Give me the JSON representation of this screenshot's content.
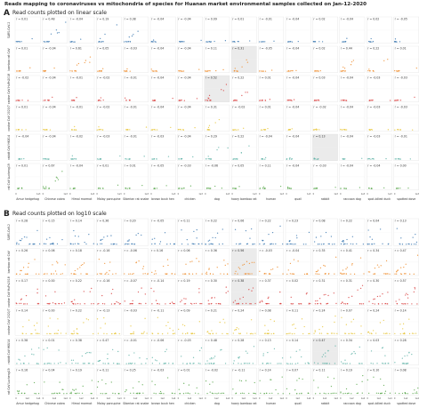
{
  "figure": {
    "title": "Reads mapping to coronaviruses vs mitochondria of species for Huanan market environmental samples collected on Jan-12-2020",
    "colors": {
      "SARS-CoV-2": "#3b78b0",
      "bamboo rat CoV": "#ef8c2b",
      "canine CoV HuPn2018": "#d9413f",
      "canine CoV 2020/7": "#e8c53a",
      "rabbit CoV HKU14": "#5fb3a7",
      "rat CoV Lucheng19": "#5aa84d"
    }
  },
  "chart_data": [
    {
      "type": "scatter",
      "letter": "A",
      "title": "Read counts plotted on linear scale",
      "rows": [
        "SARS-CoV-2",
        "bamboo rat CoV",
        "canine CoV HuPn2018",
        "canine CoV 2020/7",
        "rabbit CoV HKU14",
        "rat CoV Lucheng19"
      ],
      "columns": [
        "Amur hedgehog",
        "Chinese cobra",
        "Himal marmot",
        "Malay porcupine",
        "Siberian rat snake",
        "brown bush hen",
        "chicken",
        "dog",
        "hoary bamboo rat",
        "human",
        "quail",
        "rabbit",
        "raccoon dog",
        "spot-billed duck",
        "spotted dove"
      ],
      "xticks": [
        "0",
        "1e3"
      ],
      "r": [
        [
          "0.01",
          "0.48",
          "-0.04",
          "0.19",
          "0.38",
          "-0.04",
          "-0.04",
          "0.09",
          "0.01",
          "-0.01",
          "-0.04",
          "0.02",
          "-0.04",
          "0.02",
          "-0.05"
        ],
        [
          "0.01",
          "-0.04",
          "0.61",
          "0.05",
          "-0.03",
          "-0.04",
          "-0.04",
          "0.11",
          "0.31",
          "-0.05",
          "-0.04",
          "0.02",
          "0.44",
          "0.22",
          "0.01"
        ],
        [
          "-0.02",
          "-0.04",
          "-0.01",
          "-0.02",
          "-0.01",
          "-0.04",
          "-0.04",
          "0.52",
          "0.22",
          "0.01",
          "-0.04",
          "0.03",
          "-0.04",
          "-0.03",
          "-0.03"
        ],
        [
          "0.01",
          "-0.04",
          "-0.01",
          "-0.02",
          "-0.01",
          "-0.04",
          "-0.04",
          "0.31",
          "-0.02",
          "0.01",
          "-0.04",
          "-0.02",
          "-0.04",
          "-0.03",
          "-0.03"
        ],
        [
          "-0.04",
          "-0.04",
          "-0.02",
          "-0.03",
          "-0.01",
          "-0.03",
          "-0.04",
          "0.29",
          "0.22",
          "-0.04",
          "-0.04",
          "0.13",
          "-0.04",
          "-0.03",
          "-0.01"
        ],
        [
          "0.01",
          "0.67",
          "-0.04",
          "0.01",
          "0.01",
          "-0.05",
          "-0.03",
          "-0.06",
          "0.05",
          "0.11",
          "-0.04",
          "-0.03",
          "-0.04",
          "-0.04",
          "0.00"
        ]
      ],
      "highlight": [
        [
          2,
          7
        ],
        [
          1,
          8
        ],
        [
          4,
          11
        ]
      ]
    },
    {
      "type": "scatter",
      "letter": "B",
      "title": "Read counts plotted on log10 scale",
      "rows": [
        "SARS-CoV-2",
        "bamboo rat CoV",
        "canine CoV HuPn2018",
        "canine CoV 2020/7",
        "rabbit CoV HKU14",
        "rat CoV Lucheng19"
      ],
      "columns": [
        "Amur hedgehog",
        "Chinese cobra",
        "Himal marmot",
        "Malay porcupine",
        "Siberian rat snake",
        "brown bush hen",
        "chicken",
        "dog",
        "hoary bamboo rat",
        "human",
        "quail",
        "rabbit",
        "raccoon dog",
        "spot-billed duck",
        "spotted dove"
      ],
      "xticks": [
        "0",
        "1e2",
        "1e4"
      ],
      "r": [
        [
          "0.28",
          "0.15",
          "0.14",
          "0.36",
          "0.20",
          "-0.05",
          "0.11",
          "0.22",
          "0.06",
          "0.22",
          "0.23",
          "0.08",
          "0.22",
          "0.04",
          "0.13"
        ],
        [
          "0.26",
          "0.06",
          "0.18",
          "-0.16",
          "-0.06",
          "0.16",
          "0.06",
          "0.36",
          "0.56",
          "-0.03",
          "-0.04",
          "0.35",
          "0.41",
          "0.34",
          "0.47"
        ],
        [
          "0.17",
          "0.00",
          "0.22",
          "-0.16",
          "-0.07",
          "-0.14",
          "0.19",
          "0.30",
          "0.38",
          "0.37",
          "0.02",
          "0.31",
          "0.31",
          "0.30",
          "0.57"
        ],
        [
          "0.14",
          "0.00",
          "0.22",
          "-0.13",
          "-0.03",
          "-0.11",
          "0.09",
          "0.21",
          "0.24",
          "0.08",
          "0.11",
          "0.24",
          "0.07",
          "0.24",
          "0.14"
        ],
        [
          "0.38",
          "0.01",
          "0.38",
          "0.47",
          "-0.01",
          "-0.06",
          "-0.03",
          "0.48",
          "0.28",
          "0.13",
          "0.14",
          "0.47",
          "0.34",
          "0.03",
          "0.28"
        ],
        [
          "0.16",
          "0.04",
          "0.19",
          "0.11",
          "0.25",
          "-0.03",
          "0.01",
          "-0.02",
          "-0.11",
          "0.14",
          "0.07",
          "0.11",
          "0.19",
          "0.10",
          "0.08"
        ]
      ],
      "highlight": [
        [
          1,
          8
        ],
        [
          2,
          8
        ],
        [
          4,
          11
        ]
      ]
    }
  ]
}
